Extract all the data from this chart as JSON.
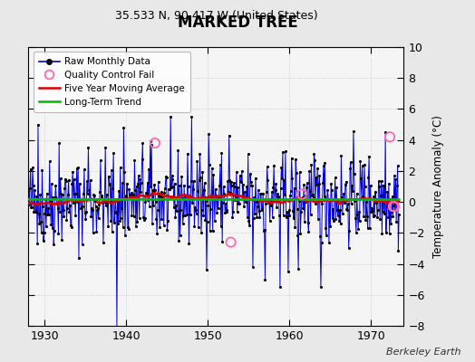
{
  "title": "MARKED TREE",
  "subtitle": "35.533 N, 90.417 W (United States)",
  "ylabel": "Temperature Anomaly (°C)",
  "credit": "Berkeley Earth",
  "xlim": [
    1928.0,
    1974.0
  ],
  "ylim": [
    -8,
    10
  ],
  "yticks": [
    -8,
    -6,
    -4,
    -2,
    0,
    2,
    4,
    6,
    8,
    10
  ],
  "xticks": [
    1930,
    1940,
    1950,
    1960,
    1970
  ],
  "figure_bg": "#e8e8e8",
  "plot_bg": "#f5f5f5",
  "raw_color": "#0000dd",
  "dot_color": "#000000",
  "qc_color": "#ff69b4",
  "ma_color": "#dd0000",
  "trend_color": "#00bb00",
  "grid_color": "#cccccc",
  "seed": 42,
  "n_months": 546,
  "start_year": 1928.0,
  "qc_fail_times": [
    1943.5,
    1952.8,
    1961.5,
    1972.3,
    1972.7,
    1972.85
  ],
  "qc_fail_values": [
    3.8,
    -2.6,
    0.5,
    4.2,
    -0.3,
    -0.3
  ]
}
